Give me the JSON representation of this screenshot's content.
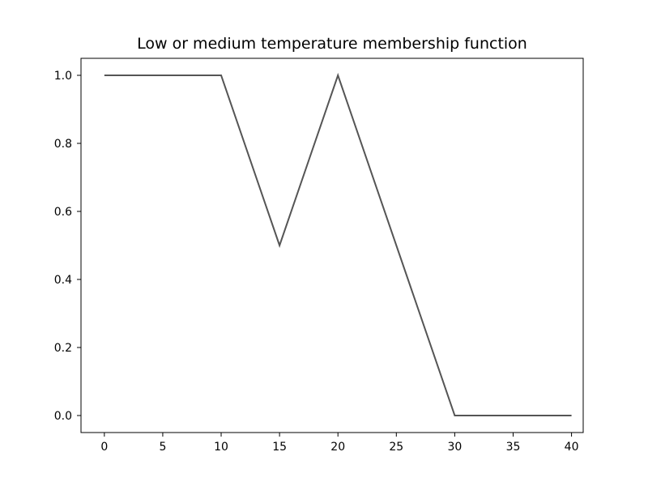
{
  "chart_data": {
    "type": "line",
    "title": "Low or medium temperature membership function",
    "xlabel": "",
    "ylabel": "",
    "xlim": [
      -2,
      41
    ],
    "ylim": [
      -0.05,
      1.05
    ],
    "xticks": [
      0,
      5,
      10,
      15,
      20,
      25,
      30,
      35,
      40
    ],
    "xtick_labels": [
      "0",
      "5",
      "10",
      "15",
      "20",
      "25",
      "30",
      "35",
      "40"
    ],
    "yticks": [
      0.0,
      0.2,
      0.4,
      0.6,
      0.8,
      1.0
    ],
    "ytick_labels": [
      "0.0",
      "0.2",
      "0.4",
      "0.6",
      "0.8",
      "1.0"
    ],
    "grid": false,
    "series": [
      {
        "color": "#555555",
        "x": [
          0,
          10,
          15,
          20,
          30,
          40
        ],
        "y": [
          1.0,
          1.0,
          0.5,
          1.0,
          0.0,
          0.0
        ]
      }
    ]
  }
}
